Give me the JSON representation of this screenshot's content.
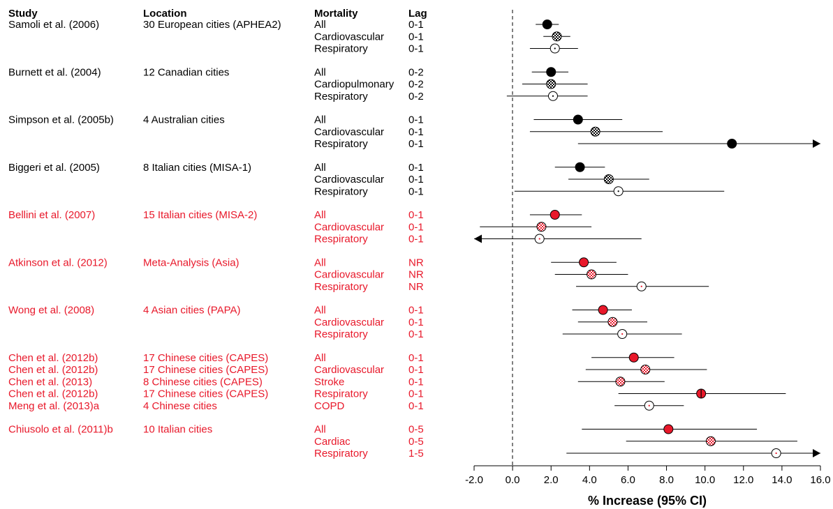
{
  "chart_data": {
    "type": "forest",
    "headers": {
      "study": "Study",
      "location": "Location",
      "mortality": "Mortality",
      "lag": "Lag"
    },
    "xlabel": "% Increase (95% CI)",
    "xlim": [
      -2.0,
      16.0
    ],
    "xticks": [
      "-2.0",
      "0.0",
      "2.0",
      "4.0",
      "6.0",
      "8.0",
      "10.0",
      "12.0",
      "14.0",
      "16.0"
    ],
    "reference_line": 0,
    "colors": {
      "black": "#000000",
      "red": "#e8182a"
    },
    "marker_styles": [
      "filled",
      "checkered",
      "dotted",
      "half-filled"
    ],
    "groups": [
      {
        "color": "black",
        "study": "Samoli et al. (2006)",
        "location": "30 European cities (APHEA2)",
        "rows": [
          {
            "mortality": "All",
            "lag": "0-1",
            "est": 1.8,
            "lo": 1.2,
            "hi": 2.4,
            "marker": "filled"
          },
          {
            "mortality": "Cardiovascular",
            "lag": "0-1",
            "est": 2.3,
            "lo": 1.6,
            "hi": 3.0,
            "marker": "checkered"
          },
          {
            "mortality": "Respiratory",
            "lag": "0-1",
            "est": 2.2,
            "lo": 0.9,
            "hi": 3.4,
            "marker": "dotted"
          }
        ]
      },
      {
        "color": "black",
        "study": "Burnett et al. (2004)",
        "location": "12 Canadian cities",
        "rows": [
          {
            "mortality": "All",
            "lag": "0-2",
            "est": 2.0,
            "lo": 1.0,
            "hi": 2.9,
            "marker": "filled"
          },
          {
            "mortality": "Cardiopulmonary",
            "lag": "0-2",
            "est": 2.0,
            "lo": 0.5,
            "hi": 3.9,
            "marker": "checkered"
          },
          {
            "mortality": "Respiratory",
            "lag": "0-2",
            "est": 2.1,
            "lo": -0.3,
            "hi": 3.9,
            "marker": "dotted"
          }
        ]
      },
      {
        "color": "black",
        "study": "Simpson et al. (2005b)",
        "location": "4 Australian cities",
        "rows": [
          {
            "mortality": "All",
            "lag": "0-1",
            "est": 3.4,
            "lo": 1.1,
            "hi": 5.7,
            "marker": "filled"
          },
          {
            "mortality": "Cardiovascular",
            "lag": "0-1",
            "est": 4.3,
            "lo": 0.9,
            "hi": 7.8,
            "marker": "checkered"
          },
          {
            "mortality": "Respiratory",
            "lag": "0-1",
            "est": 11.4,
            "lo": 3.4,
            "hi": 16.0,
            "marker": "half-filled",
            "arrow": "right"
          }
        ]
      },
      {
        "color": "black",
        "study": "Biggeri et al. (2005)",
        "location": "8 Italian cities (MISA-1)",
        "rows": [
          {
            "mortality": "All",
            "lag": "0-1",
            "est": 3.5,
            "lo": 2.2,
            "hi": 4.8,
            "marker": "filled"
          },
          {
            "mortality": "Cardiovascular",
            "lag": "0-1",
            "est": 5.0,
            "lo": 2.9,
            "hi": 7.1,
            "marker": "checkered"
          },
          {
            "mortality": "Respiratory",
            "lag": "0-1",
            "est": 5.5,
            "lo": 0.1,
            "hi": 11.0,
            "marker": "dotted"
          }
        ]
      },
      {
        "color": "red",
        "study": "Bellini et al. (2007)",
        "location": "15 Italian cities (MISA-2)",
        "rows": [
          {
            "mortality": "All",
            "lag": "0-1",
            "est": 2.2,
            "lo": 0.9,
            "hi": 3.6,
            "marker": "filled"
          },
          {
            "mortality": "Cardiovascular",
            "lag": "0-1",
            "est": 1.5,
            "lo": -1.7,
            "hi": 4.1,
            "marker": "checkered"
          },
          {
            "mortality": "Respiratory",
            "lag": "0-1",
            "est": 1.4,
            "lo": -2.0,
            "hi": 6.7,
            "marker": "dotted",
            "arrow": "left"
          }
        ]
      },
      {
        "color": "red",
        "study": "Atkinson et al. (2012)",
        "location": "Meta-Analysis (Asia)",
        "rows": [
          {
            "mortality": "All",
            "lag": "NR",
            "est": 3.7,
            "lo": 2.0,
            "hi": 5.4,
            "marker": "filled"
          },
          {
            "mortality": "Cardiovascular",
            "lag": "NR",
            "est": 4.1,
            "lo": 2.2,
            "hi": 6.0,
            "marker": "checkered"
          },
          {
            "mortality": "Respiratory",
            "lag": "NR",
            "est": 6.7,
            "lo": 3.3,
            "hi": 10.2,
            "marker": "dotted"
          }
        ]
      },
      {
        "color": "red",
        "study": "Wong et al. (2008)",
        "location": "4 Asian cities (PAPA)",
        "rows": [
          {
            "mortality": "All",
            "lag": "0-1",
            "est": 4.7,
            "lo": 3.1,
            "hi": 6.2,
            "marker": "filled"
          },
          {
            "mortality": "Cardiovascular",
            "lag": "0-1",
            "est": 5.2,
            "lo": 3.4,
            "hi": 7.0,
            "marker": "checkered"
          },
          {
            "mortality": "Respiratory",
            "lag": "0-1",
            "est": 5.7,
            "lo": 2.6,
            "hi": 8.8,
            "marker": "dotted"
          }
        ]
      },
      {
        "color": "red",
        "study": "",
        "location": "",
        "rows": [
          {
            "study": "Chen et al. (2012b)",
            "location": "17 Chinese cities (CAPES)",
            "mortality": "All",
            "lag": "0-1",
            "est": 6.3,
            "lo": 4.1,
            "hi": 8.4,
            "marker": "filled"
          },
          {
            "study": "Chen et al. (2012b)",
            "location": "17 Chinese cities (CAPES)",
            "mortality": "Cardiovascular",
            "lag": "0-1",
            "est": 6.9,
            "lo": 3.8,
            "hi": 10.1,
            "marker": "checkered"
          },
          {
            "study": "Chen et al. (2013)",
            "location": "8 Chinese cities (CAPES)",
            "mortality": "Stroke",
            "lag": "0-1",
            "est": 5.6,
            "lo": 3.4,
            "hi": 7.9,
            "marker": "checkered"
          },
          {
            "study": "Chen et al. (2012b)",
            "location": "17 Chinese cities (CAPES)",
            "mortality": "Respiratory",
            "lag": "0-1",
            "est": 9.8,
            "lo": 5.5,
            "hi": 14.2,
            "marker": "half-filled"
          },
          {
            "study": "Meng et al. (2013)a",
            "location": "4 Chinese cities",
            "mortality": "COPD",
            "lag": "0-1",
            "est": 7.1,
            "lo": 5.3,
            "hi": 8.9,
            "marker": "dotted"
          }
        ]
      },
      {
        "color": "red",
        "study": "Chiusolo et al. (2011)b",
        "location": "10 Italian cities",
        "rows": [
          {
            "mortality": "All",
            "lag": "0-5",
            "est": 8.1,
            "lo": 3.6,
            "hi": 12.7,
            "marker": "filled"
          },
          {
            "mortality": "Cardiac",
            "lag": "0-5",
            "est": 10.3,
            "lo": 5.9,
            "hi": 14.8,
            "marker": "checkered"
          },
          {
            "mortality": "Respiratory",
            "lag": "1-5",
            "est": 13.7,
            "lo": 2.8,
            "hi": 16.0,
            "marker": "dotted",
            "arrow": "right"
          }
        ]
      }
    ]
  }
}
